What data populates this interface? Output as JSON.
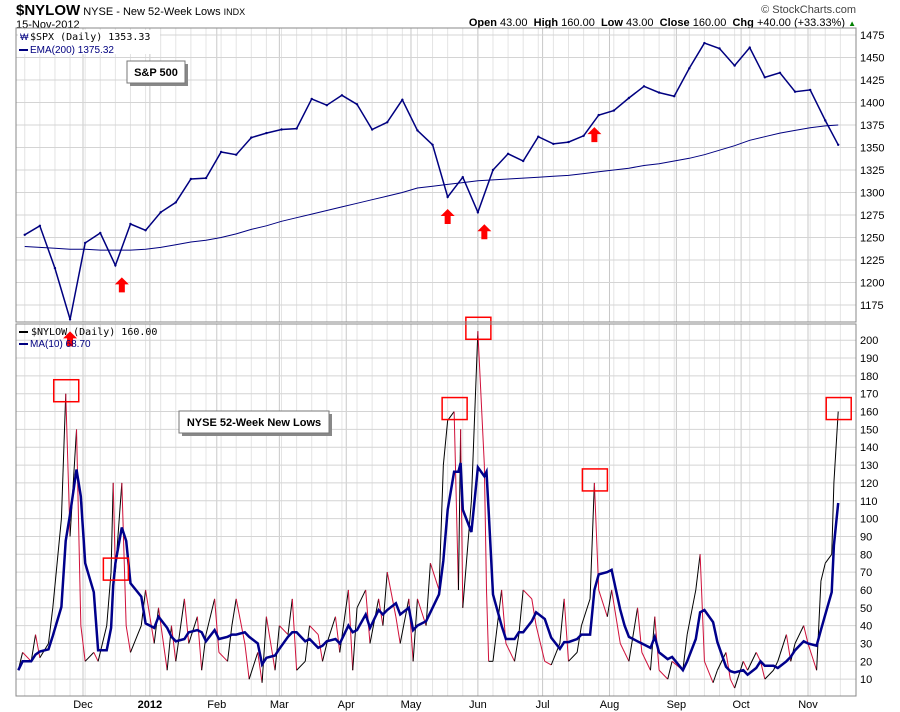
{
  "header": {
    "symbol": "$NYLOW",
    "name": "NYSE - New 52-Week Lows",
    "exchange": "INDX",
    "date": "15-Nov-2012",
    "copyright": "© StockCharts.com",
    "open_label": "Open",
    "open": "43.00",
    "high_label": "High",
    "high": "160.00",
    "low_label": "Low",
    "low": "43.00",
    "close_label": "Close",
    "close": "160.00",
    "chg_label": "Chg",
    "chg": "+40.00 (+33.33%)",
    "chg_arrow": "▲"
  },
  "colors": {
    "price": "#000080",
    "ema": "#000080",
    "ma": "#00008b",
    "up": "#000000",
    "down": "#d0103a",
    "marker": "#ff0000",
    "grid": "#d4d4d4"
  },
  "chart_data": [
    {
      "type": "line",
      "panel": "upper",
      "title": "S&P 500",
      "legend": [
        "$SPX (Daily) 1353.33",
        "EMA(200) 1375.32"
      ],
      "ylim": [
        1160,
        1480
      ],
      "yticks": [
        1175,
        1200,
        1225,
        1250,
        1275,
        1300,
        1325,
        1350,
        1375,
        1400,
        1425,
        1450,
        1475
      ],
      "dates": [
        "2011-11-04",
        "2011-11-11",
        "2011-11-18",
        "2011-11-25",
        "2011-12-02",
        "2011-12-09",
        "2011-12-16",
        "2011-12-23",
        "2011-12-30",
        "2012-01-06",
        "2012-01-13",
        "2012-01-20",
        "2012-01-27",
        "2012-02-03",
        "2012-02-10",
        "2012-02-17",
        "2012-02-24",
        "2012-03-02",
        "2012-03-09",
        "2012-03-16",
        "2012-03-23",
        "2012-03-30",
        "2012-04-06",
        "2012-04-13",
        "2012-04-20",
        "2012-04-27",
        "2012-05-04",
        "2012-05-11",
        "2012-05-18",
        "2012-05-25",
        "2012-06-01",
        "2012-06-08",
        "2012-06-15",
        "2012-06-22",
        "2012-06-29",
        "2012-07-06",
        "2012-07-13",
        "2012-07-20",
        "2012-07-27",
        "2012-08-03",
        "2012-08-10",
        "2012-08-17",
        "2012-08-24",
        "2012-08-31",
        "2012-09-07",
        "2012-09-14",
        "2012-09-21",
        "2012-09-28",
        "2012-10-05",
        "2012-10-12",
        "2012-10-19",
        "2012-10-26",
        "2012-11-02",
        "2012-11-09",
        "2012-11-15"
      ],
      "series": [
        {
          "name": "$SPX",
          "values": [
            1253,
            1263,
            1216,
            1159,
            1244,
            1255,
            1219,
            1265,
            1258,
            1278,
            1289,
            1315,
            1316,
            1345,
            1342,
            1361,
            1366,
            1370,
            1371,
            1404,
            1397,
            1408,
            1398,
            1370,
            1378,
            1403,
            1369,
            1353,
            1295,
            1317,
            1278,
            1325,
            1343,
            1335,
            1362,
            1354,
            1356,
            1363,
            1386,
            1391,
            1405,
            1418,
            1411,
            1407,
            1438,
            1466,
            1460,
            1441,
            1461,
            1428,
            1433,
            1412,
            1414,
            1380,
            1353
          ]
        },
        {
          "name": "EMA(200)",
          "values": [
            1240,
            1239,
            1238,
            1237,
            1237,
            1236,
            1236,
            1236,
            1237,
            1239,
            1242,
            1245,
            1247,
            1250,
            1254,
            1259,
            1263,
            1268,
            1272,
            1276,
            1280,
            1284,
            1288,
            1292,
            1296,
            1300,
            1305,
            1307,
            1309,
            1311,
            1313,
            1314,
            1315,
            1316,
            1317,
            1318,
            1319,
            1321,
            1323,
            1325,
            1327,
            1330,
            1332,
            1335,
            1338,
            1342,
            1347,
            1352,
            1358,
            1362,
            1366,
            1369,
            1372,
            1374,
            1375
          ]
        }
      ],
      "arrows": [
        "2011-11-25",
        "2011-12-19",
        "2012-05-18",
        "2012-06-04",
        "2012-07-25"
      ]
    },
    {
      "type": "line",
      "panel": "lower",
      "title": "NYSE 52-Week New Lows",
      "legend": [
        "$NYLOW (Daily) 160.00",
        "MA(10) 68.70"
      ],
      "ylim": [
        0,
        210
      ],
      "yticks": [
        10,
        20,
        30,
        40,
        50,
        60,
        70,
        80,
        90,
        100,
        110,
        120,
        130,
        140,
        150,
        160,
        170,
        180,
        190,
        200
      ],
      "xticks": [
        {
          "date": "2011-12-01",
          "label": "Dec"
        },
        {
          "date": "2012-01-01",
          "label": "2012",
          "bold": true
        },
        {
          "date": "2012-02-01",
          "label": "Feb"
        },
        {
          "date": "2012-03-01",
          "label": "Mar"
        },
        {
          "date": "2012-04-01",
          "label": "Apr"
        },
        {
          "date": "2012-05-01",
          "label": "May"
        },
        {
          "date": "2012-06-01",
          "label": "Jun"
        },
        {
          "date": "2012-07-01",
          "label": "Jul"
        },
        {
          "date": "2012-08-01",
          "label": "Aug"
        },
        {
          "date": "2012-09-01",
          "label": "Sep"
        },
        {
          "date": "2012-10-01",
          "label": "Oct"
        },
        {
          "date": "2012-11-01",
          "label": "Nov"
        }
      ],
      "points": [
        [
          "2011-11-01",
          15
        ],
        [
          "2011-11-03",
          25
        ],
        [
          "2011-11-07",
          20
        ],
        [
          "2011-11-09",
          35
        ],
        [
          "2011-11-11",
          22
        ],
        [
          "2011-11-15",
          30
        ],
        [
          "2011-11-17",
          50
        ],
        [
          "2011-11-21",
          100
        ],
        [
          "2011-11-23",
          170
        ],
        [
          "2011-11-25",
          90
        ],
        [
          "2011-11-28",
          150
        ],
        [
          "2011-11-30",
          40
        ],
        [
          "2011-12-02",
          20
        ],
        [
          "2011-12-06",
          25
        ],
        [
          "2011-12-08",
          20
        ],
        [
          "2011-12-12",
          40
        ],
        [
          "2011-12-14",
          70
        ],
        [
          "2011-12-15",
          120
        ],
        [
          "2011-12-16",
          70
        ],
        [
          "2011-12-19",
          120
        ],
        [
          "2011-12-21",
          40
        ],
        [
          "2011-12-23",
          25
        ],
        [
          "2011-12-28",
          40
        ],
        [
          "2011-12-30",
          60
        ],
        [
          "2012-01-03",
          30
        ],
        [
          "2012-01-05",
          50
        ],
        [
          "2012-01-09",
          15
        ],
        [
          "2012-01-11",
          40
        ],
        [
          "2012-01-13",
          20
        ],
        [
          "2012-01-17",
          55
        ],
        [
          "2012-01-19",
          30
        ],
        [
          "2012-01-23",
          45
        ],
        [
          "2012-01-25",
          15
        ],
        [
          "2012-01-27",
          35
        ],
        [
          "2012-01-31",
          55
        ],
        [
          "2012-02-02",
          25
        ],
        [
          "2012-02-06",
          20
        ],
        [
          "2012-02-08",
          40
        ],
        [
          "2012-02-10",
          55
        ],
        [
          "2012-02-14",
          30
        ],
        [
          "2012-02-16",
          10
        ],
        [
          "2012-02-20",
          25
        ],
        [
          "2012-02-22",
          8
        ],
        [
          "2012-02-24",
          45
        ],
        [
          "2012-02-28",
          15
        ],
        [
          "2012-03-01",
          40
        ],
        [
          "2012-03-05",
          35
        ],
        [
          "2012-03-07",
          55
        ],
        [
          "2012-03-09",
          15
        ],
        [
          "2012-03-13",
          20
        ],
        [
          "2012-03-15",
          40
        ],
        [
          "2012-03-19",
          35
        ],
        [
          "2012-03-21",
          20
        ],
        [
          "2012-03-23",
          30
        ],
        [
          "2012-03-27",
          45
        ],
        [
          "2012-03-29",
          25
        ],
        [
          "2012-04-02",
          60
        ],
        [
          "2012-04-04",
          15
        ],
        [
          "2012-04-06",
          50
        ],
        [
          "2012-04-10",
          60
        ],
        [
          "2012-04-12",
          30
        ],
        [
          "2012-04-16",
          55
        ],
        [
          "2012-04-18",
          40
        ],
        [
          "2012-04-20",
          70
        ],
        [
          "2012-04-24",
          45
        ],
        [
          "2012-04-26",
          30
        ],
        [
          "2012-04-30",
          55
        ],
        [
          "2012-05-02",
          20
        ],
        [
          "2012-05-04",
          55
        ],
        [
          "2012-05-08",
          40
        ],
        [
          "2012-05-10",
          75
        ],
        [
          "2012-05-14",
          60
        ],
        [
          "2012-05-16",
          130
        ],
        [
          "2012-05-18",
          155
        ],
        [
          "2012-05-21",
          160
        ],
        [
          "2012-05-23",
          60
        ],
        [
          "2012-05-24",
          150
        ],
        [
          "2012-05-25",
          50
        ],
        [
          "2012-05-29",
          110
        ],
        [
          "2012-06-01",
          205
        ],
        [
          "2012-06-04",
          130
        ],
        [
          "2012-06-05",
          60
        ],
        [
          "2012-06-06",
          20
        ],
        [
          "2012-06-08",
          20
        ],
        [
          "2012-06-12",
          60
        ],
        [
          "2012-06-14",
          30
        ],
        [
          "2012-06-18",
          20
        ],
        [
          "2012-06-20",
          35
        ],
        [
          "2012-06-22",
          60
        ],
        [
          "2012-06-26",
          55
        ],
        [
          "2012-06-28",
          40
        ],
        [
          "2012-07-02",
          20
        ],
        [
          "2012-07-05",
          18
        ],
        [
          "2012-07-09",
          30
        ],
        [
          "2012-07-11",
          55
        ],
        [
          "2012-07-13",
          20
        ],
        [
          "2012-07-17",
          25
        ],
        [
          "2012-07-19",
          40
        ],
        [
          "2012-07-23",
          55
        ],
        [
          "2012-07-25",
          120
        ],
        [
          "2012-07-27",
          60
        ],
        [
          "2012-07-31",
          45
        ],
        [
          "2012-08-02",
          60
        ],
        [
          "2012-08-06",
          30
        ],
        [
          "2012-08-08",
          25
        ],
        [
          "2012-08-10",
          20
        ],
        [
          "2012-08-14",
          50
        ],
        [
          "2012-08-16",
          25
        ],
        [
          "2012-08-20",
          15
        ],
        [
          "2012-08-22",
          45
        ],
        [
          "2012-08-24",
          15
        ],
        [
          "2012-08-28",
          10
        ],
        [
          "2012-08-30",
          20
        ],
        [
          "2012-09-04",
          15
        ],
        [
          "2012-09-06",
          35
        ],
        [
          "2012-09-10",
          60
        ],
        [
          "2012-09-12",
          80
        ],
        [
          "2012-09-14",
          20
        ],
        [
          "2012-09-18",
          8
        ],
        [
          "2012-09-20",
          15
        ],
        [
          "2012-09-24",
          25
        ],
        [
          "2012-09-26",
          10
        ],
        [
          "2012-09-28",
          5
        ],
        [
          "2012-10-02",
          20
        ],
        [
          "2012-10-04",
          15
        ],
        [
          "2012-10-08",
          25
        ],
        [
          "2012-10-10",
          20
        ],
        [
          "2012-10-12",
          10
        ],
        [
          "2012-10-16",
          15
        ],
        [
          "2012-10-18",
          20
        ],
        [
          "2012-10-22",
          35
        ],
        [
          "2012-10-24",
          20
        ],
        [
          "2012-10-26",
          30
        ],
        [
          "2012-10-30",
          40
        ],
        [
          "2012-11-01",
          30
        ],
        [
          "2012-11-05",
          15
        ],
        [
          "2012-11-07",
          65
        ],
        [
          "2012-11-09",
          75
        ],
        [
          "2012-11-12",
          80
        ],
        [
          "2012-11-13",
          120
        ],
        [
          "2012-11-15",
          160
        ]
      ],
      "ma_window_points": 4,
      "boxes": [
        "2011-11-23",
        "2011-12-16",
        "2012-05-21",
        "2012-06-01",
        "2012-07-25",
        "2012-11-15"
      ]
    }
  ]
}
